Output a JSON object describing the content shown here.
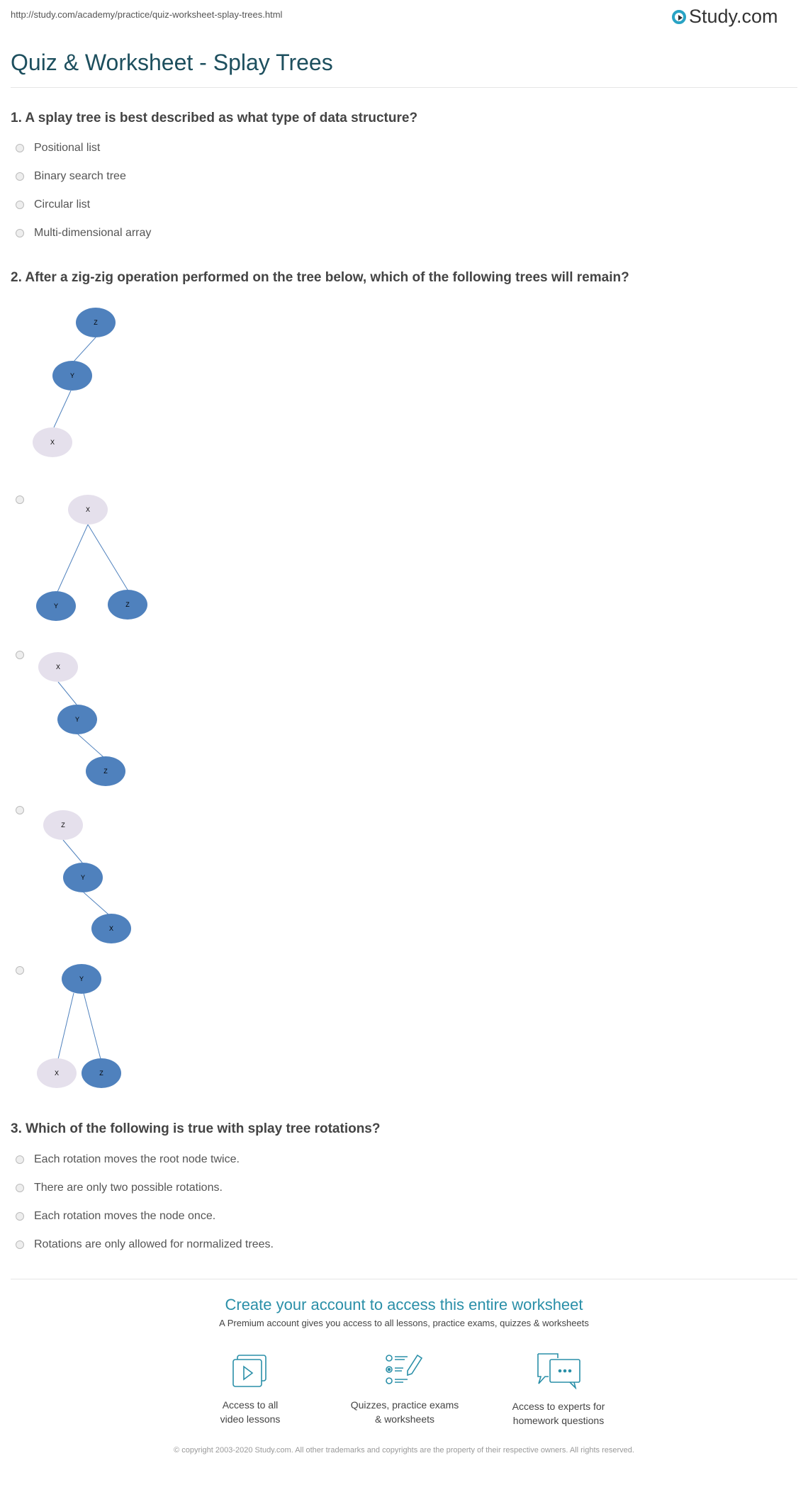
{
  "url": "http://study.com/academy/practice/quiz-worksheet-splay-trees.html",
  "logo": {
    "text": "Study.com"
  },
  "title": "Quiz & Worksheet - Splay Trees",
  "questions": [
    {
      "text": "1. A splay tree is best described as what type of data structure?",
      "options": [
        "Positional list",
        "Binary search tree",
        "Circular list",
        "Multi-dimensional array"
      ]
    },
    {
      "text": "2. After a zig-zig operation performed on the tree below, which of the following trees will remain?",
      "tree": {
        "root": "Z",
        "mid": "Y",
        "leaf": "X"
      },
      "options": [
        {
          "root": "X",
          "left": "Y",
          "right": "Z"
        },
        {
          "n1": "X",
          "n2": "Y",
          "n3": "Z"
        },
        {
          "n1": "Z",
          "n2": "Y",
          "n3": "X"
        },
        {
          "root": "Y",
          "left": "X",
          "right": "Z"
        }
      ]
    },
    {
      "text": "3. Which of the following is true with splay tree rotations?",
      "options": [
        "Each rotation moves the root node twice.",
        "There are only two possible rotations.",
        "Each rotation moves the node once.",
        "Rotations are only allowed for normalized trees."
      ]
    }
  ],
  "cta": {
    "title": "Create your account to access this entire worksheet",
    "subtitle": "A Premium account gives you access to all lessons, practice exams, quizzes & worksheets",
    "features": [
      {
        "icon": "video-icon",
        "line1": "Access to all",
        "line2": "video lessons"
      },
      {
        "icon": "quiz-icon",
        "line1": "Quizzes, practice exams",
        "line2": "& worksheets"
      },
      {
        "icon": "chat-icon",
        "line1": "Access to experts for",
        "line2": "homework questions"
      }
    ]
  },
  "copyright": "© copyright 2003-2020 Study.com. All other trademarks and copyrights are the property of their respective owners. All rights reserved.",
  "colors": {
    "accent": "#2a8fa8",
    "node_dark": "#4f81bd",
    "node_light": "#e5e0ec",
    "title": "#1d4f5e"
  }
}
